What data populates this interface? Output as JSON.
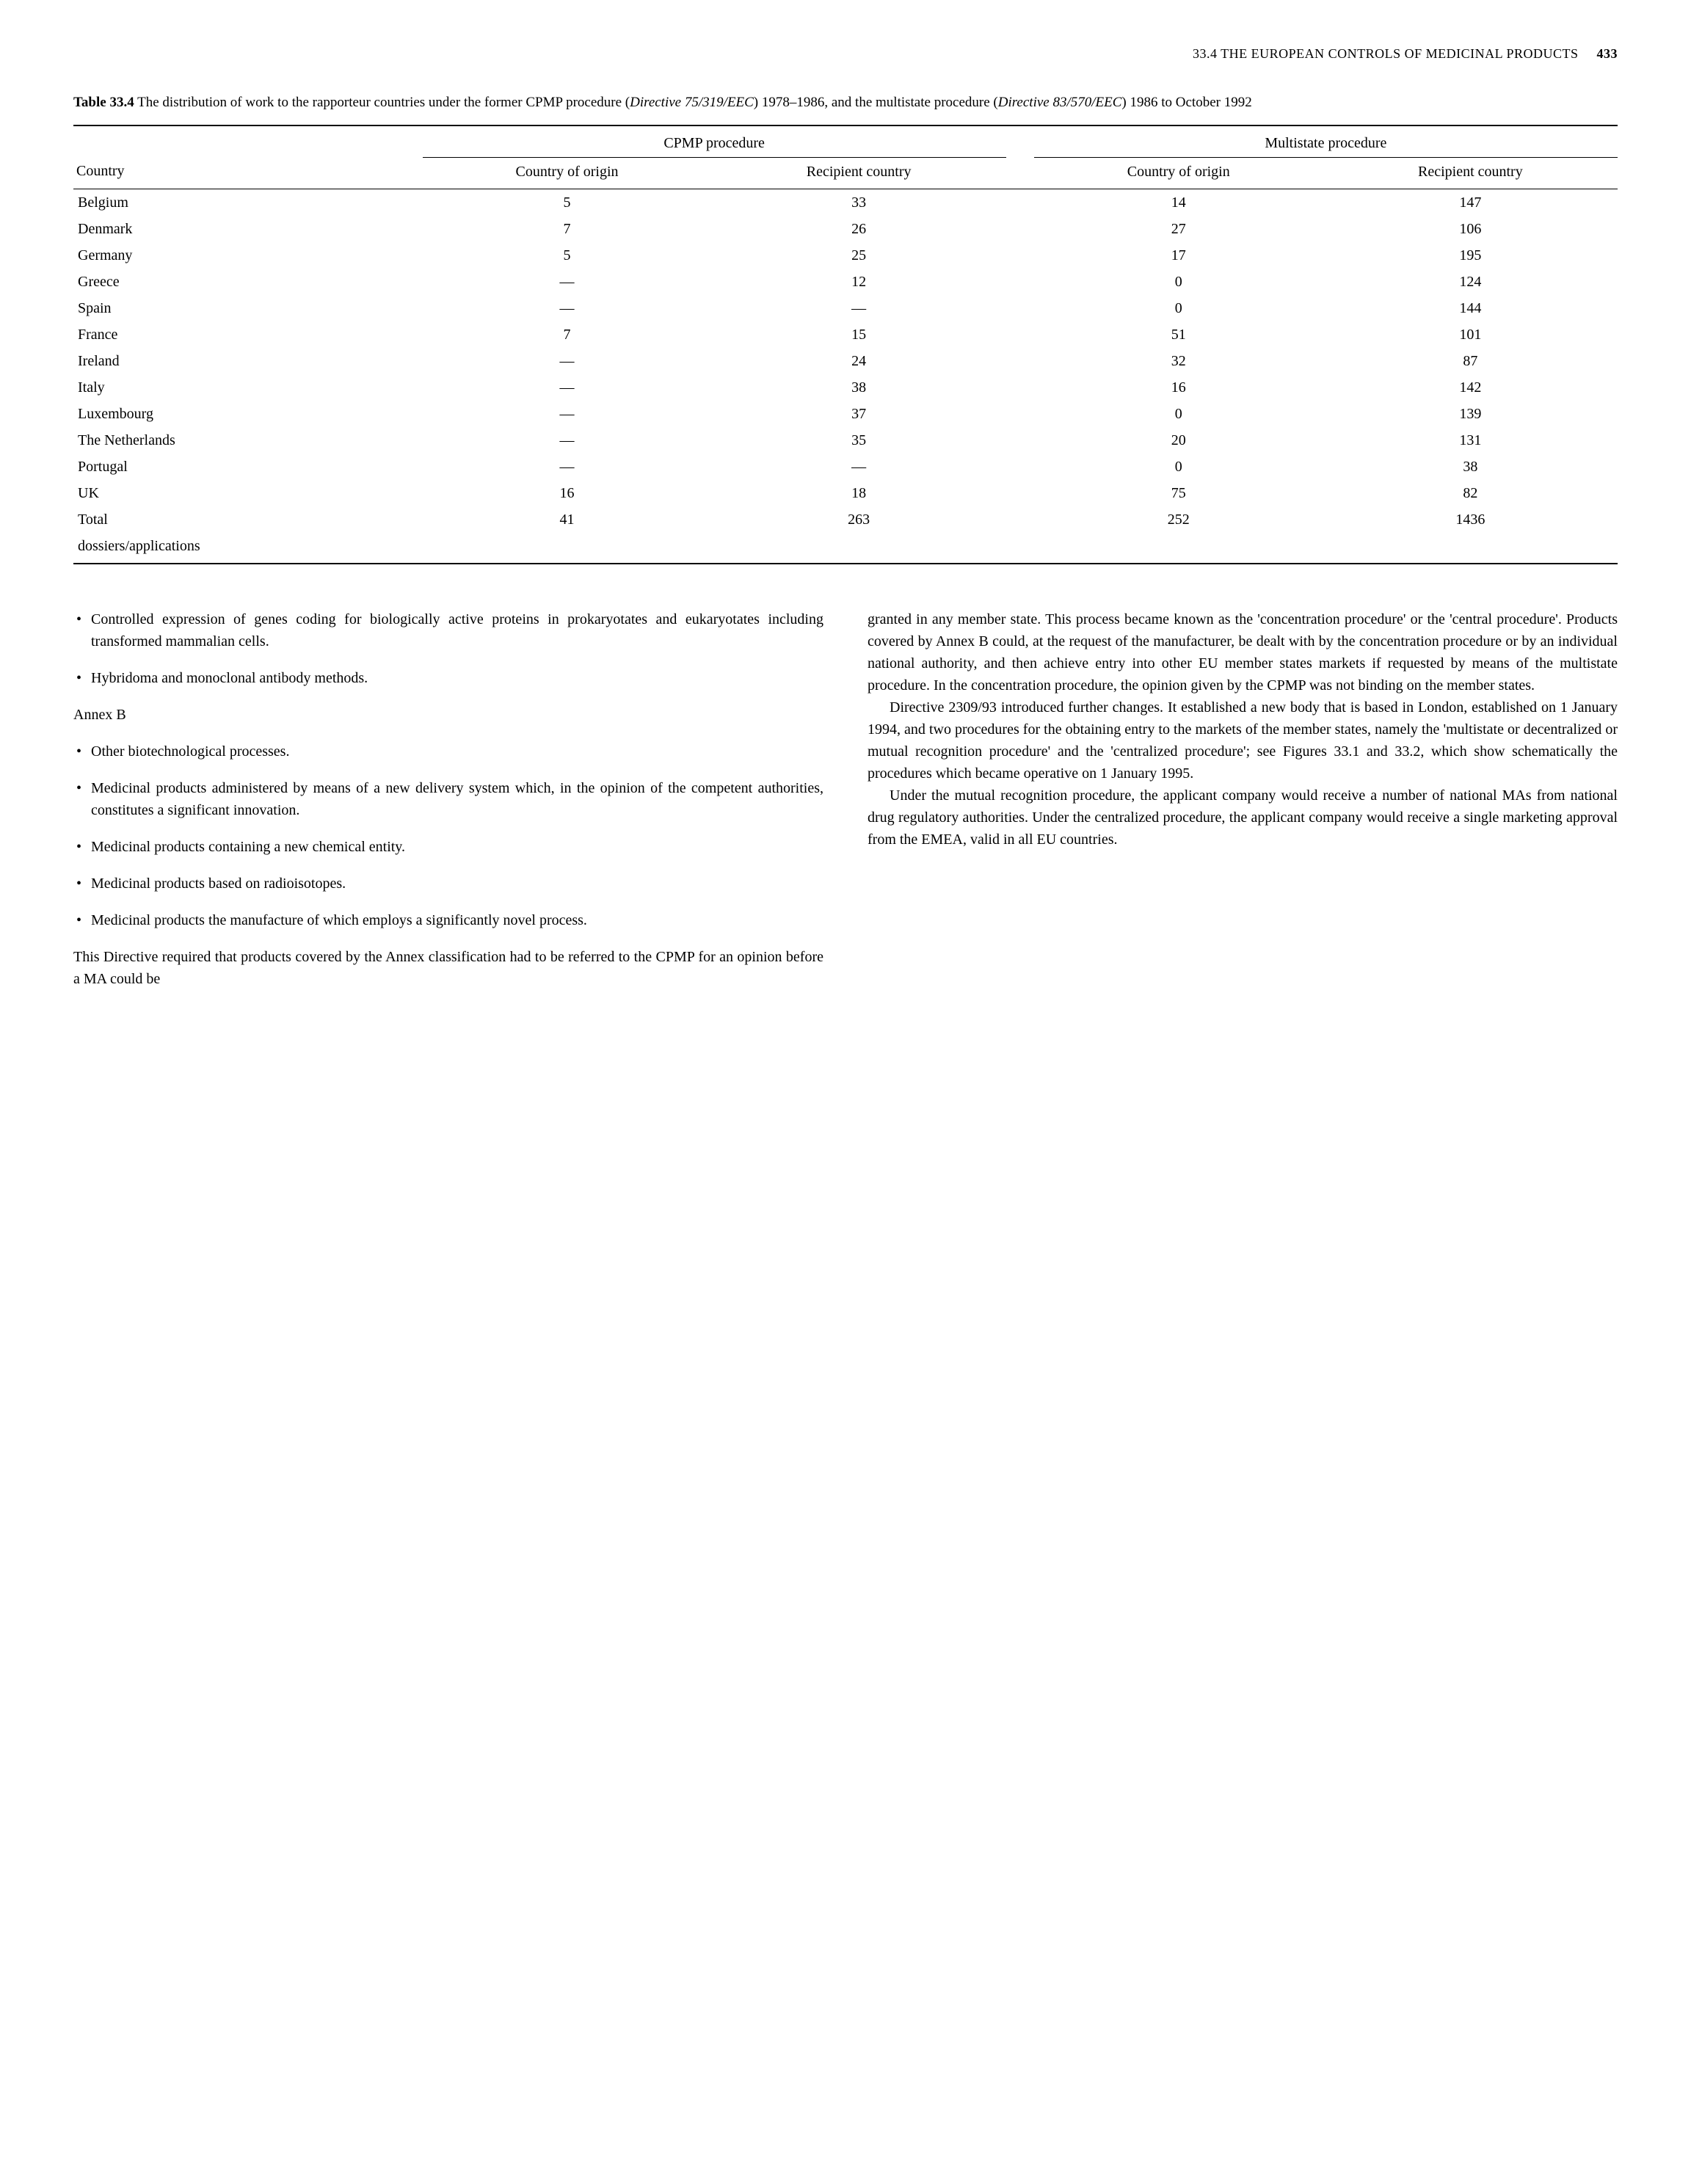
{
  "header": {
    "section": "33.4  THE EUROPEAN CONTROLS OF MEDICINAL PRODUCTS",
    "page": "433"
  },
  "table": {
    "label": "Table 33.4",
    "caption_pre": "The distribution of work to the rapporteur countries under the former CPMP procedure (",
    "caption_italic1": "Directive 75/319/EEC",
    "caption_mid": ") 1978–1986, and the multistate procedure (",
    "caption_italic2": "Directive 83/570/EEC",
    "caption_post": ") 1986 to October 1992",
    "group_headers": {
      "cpmp": "CPMP procedure",
      "multi": "Multistate procedure"
    },
    "columns": {
      "country": "Country",
      "cpmp_origin": "Country of origin",
      "cpmp_recipient": "Recipient country",
      "multi_origin": "Country of origin",
      "multi_recipient": "Recipient country"
    },
    "rows": [
      {
        "country": "Belgium",
        "co": "5",
        "cr": "33",
        "mo": "14",
        "mr": "147"
      },
      {
        "country": "Denmark",
        "co": "7",
        "cr": "26",
        "mo": "27",
        "mr": "106"
      },
      {
        "country": "Germany",
        "co": "5",
        "cr": "25",
        "mo": "17",
        "mr": "195"
      },
      {
        "country": "Greece",
        "co": "—",
        "cr": "12",
        "mo": "0",
        "mr": "124"
      },
      {
        "country": "Spain",
        "co": "—",
        "cr": "—",
        "mo": "0",
        "mr": "144"
      },
      {
        "country": "France",
        "co": "7",
        "cr": "15",
        "mo": "51",
        "mr": "101"
      },
      {
        "country": "Ireland",
        "co": "—",
        "cr": "24",
        "mo": "32",
        "mr": "87"
      },
      {
        "country": "Italy",
        "co": "—",
        "cr": "38",
        "mo": "16",
        "mr": "142"
      },
      {
        "country": "Luxembourg",
        "co": "—",
        "cr": "37",
        "mo": "0",
        "mr": "139"
      },
      {
        "country": "The Netherlands",
        "co": "—",
        "cr": "35",
        "mo": "20",
        "mr": "131"
      },
      {
        "country": "Portugal",
        "co": "—",
        "cr": "—",
        "mo": "0",
        "mr": "38"
      },
      {
        "country": "UK",
        "co": "16",
        "cr": "18",
        "mo": "75",
        "mr": "82"
      }
    ],
    "total": {
      "label_line1": "Total",
      "label_line2": "dossiers/applications",
      "co": "41",
      "cr": "263",
      "mo": "252",
      "mr": "1436"
    }
  },
  "left": {
    "bullets_top": [
      "Controlled expression of genes coding for biologically active proteins in prokaryotates and eukaryotates including transformed mammalian cells.",
      "Hybridoma and monoclonal antibody methods."
    ],
    "annex_b": "Annex B",
    "bullets_b": [
      "Other biotechnological processes.",
      "Medicinal products administered by means of a new delivery system which, in the opinion of the competent authorities, constitutes a significant innovation.",
      "Medicinal products containing a new chemical entity.",
      "Medicinal products based on radioisotopes.",
      "Medicinal products the manufacture of which employs a significantly novel process."
    ],
    "para": "This Directive required that products covered by the Annex classification had to be referred to the CPMP for an opinion before a MA could be"
  },
  "right": {
    "para1": "granted in any member state. This process became known as the 'concentration procedure' or the 'central procedure'. Products covered by Annex B could, at the request of the manufacturer, be dealt with by the concentration procedure or by an individual national authority, and then achieve entry into other EU member states markets if requested by means of the multistate procedure. In the concentration procedure, the opinion given by the CPMP was not binding on the member states.",
    "para2": "Directive 2309/93 introduced further changes. It established a new body that is based in London, established on 1 January 1994, and two procedures for the obtaining entry to the markets of the member states, namely the 'multistate or decentralized or mutual recognition procedure' and the 'centralized procedure'; see Figures 33.1 and 33.2, which show schematically the procedures which became operative on 1 January 1995.",
    "para3": "Under the mutual recognition procedure, the applicant company would receive a number of national MAs from national drug regulatory authorities. Under the centralized procedure, the applicant company would receive a single marketing approval from the EMEA, valid in all EU countries."
  }
}
